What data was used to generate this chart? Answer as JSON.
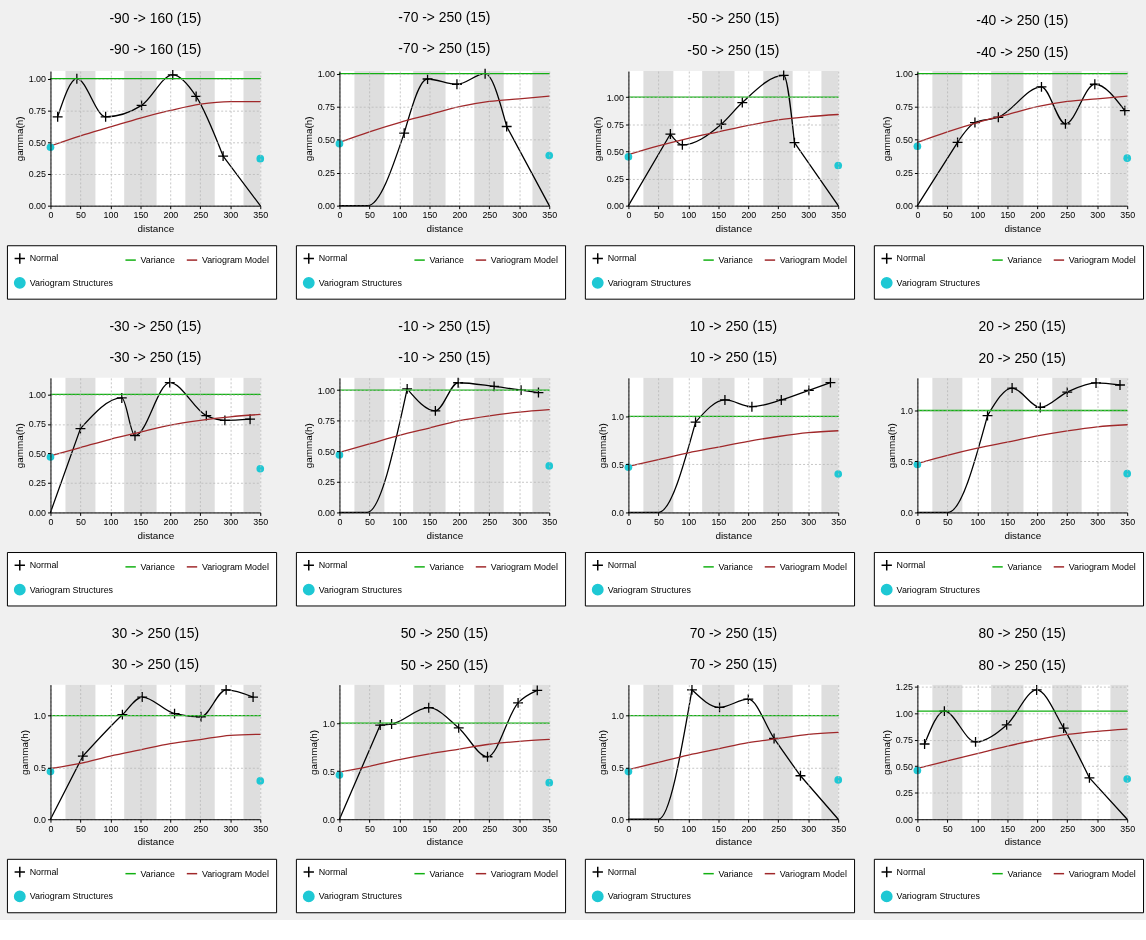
{
  "chart_data": [
    {
      "type": "line",
      "title": "-90 -> 160 (15)",
      "subtitle": "-90 -> 160 (15)",
      "xlabel": "distance",
      "ylabel": "gamma(h)",
      "xlim": [
        0,
        350
      ],
      "xticks": [
        0,
        50,
        100,
        150,
        200,
        250,
        300,
        350
      ],
      "ylim": [
        0,
        1.06
      ],
      "yticks": [
        {
          "value": 0,
          "label": "0.00"
        },
        0.25,
        {
          "value": 0.5,
          "label": "0.50"
        },
        0.75,
        {
          "value": 1,
          "label": "1.00"
        }
      ],
      "grid": true,
      "legend": "bottom",
      "bands": [
        {
          "axis": "x",
          "from": 25,
          "to": 75,
          "color": "#dedede"
        },
        {
          "axis": "x",
          "from": 123,
          "to": 177,
          "color": "#dedede"
        },
        {
          "axis": "x",
          "from": 225,
          "to": 274,
          "color": "#dedede"
        },
        {
          "axis": "x",
          "from": 322,
          "to": 350,
          "color": "#dedede"
        }
      ],
      "series": [
        {
          "name": "Normal",
          "marker": "cross",
          "color": "#000000",
          "x": [
            12,
            44,
            92,
            152,
            204,
            243,
            288
          ],
          "values": [
            0.7,
            1.0,
            0.7,
            0.79,
            1.03,
            0.86,
            0.39
          ]
        },
        {
          "color": "#000000",
          "x": [
            288,
            350
          ],
          "values": [
            0.39,
            0
          ]
        },
        {
          "name": "Variance",
          "color": "#12b012",
          "x": [
            0,
            350
          ],
          "values": [
            1,
            1
          ]
        },
        {
          "name": "Variogram Model",
          "color": "#a0282a",
          "x": [
            0,
            50,
            100,
            150,
            200,
            250,
            300,
            350
          ],
          "values": [
            0.47,
            0.55,
            0.62,
            0.69,
            0.75,
            0.8,
            0.82,
            0.82
          ]
        },
        {
          "name": "Variogram Structures",
          "type": "scatter",
          "marker": "circle",
          "color": "#1ec8d4",
          "x": [
            0,
            350
          ],
          "values": [
            0.46,
            0.37
          ]
        }
      ]
    },
    {
      "type": "line",
      "title": "-70 -> 250 (15)",
      "subtitle": "-70 -> 250 (15)",
      "xlabel": "distance",
      "ylabel": "gamma(h)",
      "xlim": [
        0,
        350
      ],
      "xticks": [
        0,
        50,
        100,
        150,
        200,
        250,
        300,
        350
      ],
      "ylim": [
        0,
        1.02
      ],
      "yticks": [
        {
          "value": 0,
          "label": "0.00"
        },
        0.25,
        {
          "value": 0.5,
          "label": "0.50"
        },
        0.75,
        {
          "value": 1,
          "label": "1.00"
        }
      ],
      "grid": true,
      "legend": "bottom",
      "bands": [
        {
          "axis": "x",
          "from": 25,
          "to": 75,
          "color": "#dedede"
        },
        {
          "axis": "x",
          "from": 123,
          "to": 177,
          "color": "#dedede"
        },
        {
          "axis": "x",
          "from": 225,
          "to": 274,
          "color": "#dedede"
        },
        {
          "axis": "x",
          "from": 322,
          "to": 350,
          "color": "#dedede"
        }
      ],
      "series": [
        {
          "name": "Normal",
          "marker": "cross",
          "color": "#000000",
          "x": [
            108,
            147,
            196,
            243,
            279
          ],
          "values": [
            0.55,
            0.96,
            0.92,
            1.0,
            0.6
          ]
        },
        {
          "color": "#000000",
          "x": [
            0,
            47,
            108
          ],
          "values": [
            0,
            0,
            0.55
          ]
        },
        {
          "color": "#000000",
          "x": [
            279,
            350
          ],
          "values": [
            0.6,
            0
          ]
        },
        {
          "name": "Variance",
          "color": "#12b012",
          "x": [
            0,
            350
          ],
          "values": [
            1,
            1
          ]
        },
        {
          "name": "Variogram Model",
          "color": "#a0282a",
          "x": [
            0,
            50,
            100,
            150,
            200,
            250,
            300,
            350
          ],
          "values": [
            0.48,
            0.56,
            0.63,
            0.69,
            0.75,
            0.79,
            0.81,
            0.83
          ]
        },
        {
          "name": "Variogram Structures",
          "type": "scatter",
          "marker": "circle",
          "color": "#1ec8d4",
          "x": [
            0,
            350
          ],
          "values": [
            0.47,
            0.38
          ]
        }
      ]
    },
    {
      "type": "line",
      "title": "-50 -> 250 (15)",
      "subtitle": "-50 -> 250 (15)",
      "xlabel": "distance",
      "ylabel": "gamma(h)",
      "xlim": [
        0,
        350
      ],
      "xticks": [
        0,
        50,
        100,
        150,
        200,
        250,
        300,
        350
      ],
      "ylim": [
        0,
        1.24
      ],
      "yticks": [
        {
          "value": 0,
          "label": "0.00"
        },
        0.25,
        {
          "value": 0.5,
          "label": "0.50"
        },
        0.75,
        {
          "value": 1,
          "label": "1.00"
        }
      ],
      "grid": true,
      "legend": "bottom",
      "bands": [
        {
          "axis": "x",
          "from": 25,
          "to": 75,
          "color": "#dedede"
        },
        {
          "axis": "x",
          "from": 123,
          "to": 177,
          "color": "#dedede"
        },
        {
          "axis": "x",
          "from": 225,
          "to": 274,
          "color": "#dedede"
        },
        {
          "axis": "x",
          "from": 322,
          "to": 350,
          "color": "#dedede"
        }
      ],
      "series": [
        {
          "name": "Normal",
          "marker": "cross",
          "color": "#000000",
          "x": [
            70,
            90,
            155,
            190,
            259,
            277
          ],
          "values": [
            0.66,
            0.56,
            0.75,
            0.95,
            1.2,
            0.58
          ]
        },
        {
          "color": "#000000",
          "x": [
            0,
            70
          ],
          "values": [
            0,
            0.66
          ]
        },
        {
          "color": "#000000",
          "x": [
            277,
            350
          ],
          "values": [
            0.58,
            0
          ]
        },
        {
          "name": "Variance",
          "color": "#12b012",
          "x": [
            0,
            350
          ],
          "values": [
            1,
            1
          ]
        },
        {
          "name": "Variogram Model",
          "color": "#a0282a",
          "x": [
            0,
            50,
            100,
            150,
            200,
            250,
            300,
            350
          ],
          "values": [
            0.47,
            0.55,
            0.62,
            0.68,
            0.74,
            0.79,
            0.82,
            0.84
          ]
        },
        {
          "name": "Variogram Structures",
          "type": "scatter",
          "marker": "circle",
          "color": "#1ec8d4",
          "x": [
            0,
            350
          ],
          "values": [
            0.45,
            0.37
          ]
        }
      ]
    },
    {
      "type": "line",
      "title": "-40 -> 250 (15)",
      "subtitle": "-40 -> 250 (15)",
      "xlabel": "distance",
      "ylabel": "gamma(h)",
      "xlim": [
        0,
        350
      ],
      "xticks": [
        0,
        50,
        100,
        150,
        200,
        250,
        300,
        350
      ],
      "ylim": [
        0,
        1.02
      ],
      "yticks": [
        {
          "value": 0,
          "label": "0.00"
        },
        0.25,
        {
          "value": 0.5,
          "label": "0.50"
        },
        0.75,
        {
          "value": 1,
          "label": "1.00"
        }
      ],
      "grid": true,
      "legend": "bottom",
      "bands": [
        {
          "axis": "x",
          "from": 25,
          "to": 75,
          "color": "#dedede"
        },
        {
          "axis": "x",
          "from": 123,
          "to": 177,
          "color": "#dedede"
        },
        {
          "axis": "x",
          "from": 225,
          "to": 274,
          "color": "#dedede"
        },
        {
          "axis": "x",
          "from": 322,
          "to": 350,
          "color": "#dedede"
        }
      ],
      "series": [
        {
          "name": "Normal",
          "marker": "cross",
          "color": "#000000",
          "x": [
            67,
            96,
            135,
            207,
            247,
            296,
            346
          ],
          "values": [
            0.48,
            0.63,
            0.67,
            0.9,
            0.62,
            0.92,
            0.72
          ]
        },
        {
          "color": "#000000",
          "x": [
            0,
            67
          ],
          "values": [
            0,
            0.48
          ]
        },
        {
          "name": "Variance",
          "color": "#12b012",
          "x": [
            0,
            350
          ],
          "values": [
            1,
            1
          ]
        },
        {
          "name": "Variogram Model",
          "color": "#a0282a",
          "x": [
            0,
            50,
            100,
            150,
            200,
            250,
            300,
            350
          ],
          "values": [
            0.48,
            0.56,
            0.63,
            0.69,
            0.75,
            0.79,
            0.81,
            0.83
          ]
        },
        {
          "name": "Variogram Structures",
          "type": "scatter",
          "marker": "circle",
          "color": "#1ec8d4",
          "x": [
            0,
            350
          ],
          "values": [
            0.45,
            0.36
          ]
        }
      ]
    },
    {
      "type": "line",
      "title": "-30 -> 250 (15)",
      "subtitle": "-30 -> 250 (15)",
      "xlabel": "distance",
      "ylabel": "gamma(h)",
      "xlim": [
        0,
        350
      ],
      "xticks": [
        0,
        50,
        100,
        150,
        200,
        250,
        300,
        350
      ],
      "ylim": [
        0,
        1.14
      ],
      "yticks": [
        {
          "value": 0,
          "label": "0.00"
        },
        0.25,
        {
          "value": 0.5,
          "label": "0.50"
        },
        0.75,
        {
          "value": 1,
          "label": "1.00"
        }
      ],
      "grid": true,
      "legend": "bottom",
      "bands": [
        {
          "axis": "x",
          "from": 25,
          "to": 75,
          "color": "#dedede"
        },
        {
          "axis": "x",
          "from": 123,
          "to": 177,
          "color": "#dedede"
        },
        {
          "axis": "x",
          "from": 225,
          "to": 274,
          "color": "#dedede"
        },
        {
          "axis": "x",
          "from": 322,
          "to": 350,
          "color": "#dedede"
        }
      ],
      "series": [
        {
          "name": "Normal",
          "marker": "cross",
          "color": "#000000",
          "x": [
            50,
            119,
            141,
            199,
            260,
            291,
            333
          ],
          "values": [
            0.71,
            0.97,
            0.65,
            1.1,
            0.82,
            0.78,
            0.79
          ]
        },
        {
          "color": "#000000",
          "x": [
            0,
            50
          ],
          "values": [
            0,
            0.71
          ]
        },
        {
          "name": "Variance",
          "color": "#12b012",
          "x": [
            0,
            350
          ],
          "values": [
            1,
            1
          ]
        },
        {
          "name": "Variogram Model",
          "color": "#a0282a",
          "x": [
            0,
            50,
            100,
            150,
            200,
            250,
            300,
            350
          ],
          "values": [
            0.48,
            0.55,
            0.62,
            0.68,
            0.74,
            0.78,
            0.81,
            0.83
          ]
        },
        {
          "name": "Variogram Structures",
          "type": "scatter",
          "marker": "circle",
          "color": "#1ec8d4",
          "x": [
            0,
            350
          ],
          "values": [
            0.47,
            0.37
          ]
        }
      ]
    },
    {
      "type": "line",
      "title": "-10 -> 250 (15)",
      "subtitle": "-10 -> 250 (15)",
      "xlabel": "distance",
      "ylabel": "gamma(h)",
      "xlim": [
        0,
        350
      ],
      "xticks": [
        0,
        50,
        100,
        150,
        200,
        250,
        300,
        350
      ],
      "ylim": [
        0,
        1.1
      ],
      "yticks": [
        {
          "value": 0,
          "label": "0.00"
        },
        0.25,
        {
          "value": 0.5,
          "label": "0.50"
        },
        0.75,
        {
          "value": 1,
          "label": "1.00"
        }
      ],
      "grid": true,
      "legend": "bottom",
      "bands": [
        {
          "axis": "x",
          "from": 25,
          "to": 75,
          "color": "#dedede"
        },
        {
          "axis": "x",
          "from": 123,
          "to": 177,
          "color": "#dedede"
        },
        {
          "axis": "x",
          "from": 225,
          "to": 274,
          "color": "#dedede"
        },
        {
          "axis": "x",
          "from": 322,
          "to": 350,
          "color": "#dedede"
        }
      ],
      "series": [
        {
          "name": "Normal",
          "marker": "cross",
          "color": "#000000",
          "x": [
            113,
            160,
            198,
            258,
            303,
            332
          ],
          "values": [
            1.01,
            0.83,
            1.06,
            1.03,
            1.0,
            0.98
          ]
        },
        {
          "color": "#000000",
          "x": [
            0,
            46,
            113
          ],
          "values": [
            0,
            0,
            1.01
          ]
        },
        {
          "name": "Variance",
          "color": "#12b012",
          "x": [
            0,
            350
          ],
          "values": [
            1,
            1
          ]
        },
        {
          "name": "Variogram Model",
          "color": "#a0282a",
          "x": [
            0,
            50,
            100,
            150,
            200,
            250,
            300,
            350
          ],
          "values": [
            0.49,
            0.56,
            0.63,
            0.69,
            0.75,
            0.79,
            0.82,
            0.84
          ]
        },
        {
          "name": "Variogram Structures",
          "type": "scatter",
          "marker": "circle",
          "color": "#1ec8d4",
          "x": [
            0,
            350
          ],
          "values": [
            0.47,
            0.38
          ]
        }
      ]
    },
    {
      "type": "line",
      "title": "10 -> 250 (15)",
      "subtitle": "10 -> 250 (15)",
      "xlabel": "distance",
      "ylabel": "gamma(h)",
      "xlim": [
        0,
        350
      ],
      "xticks": [
        0,
        50,
        100,
        150,
        200,
        250,
        300,
        350
      ],
      "ylim": [
        0,
        1.4
      ],
      "yticks": [
        {
          "value": 0,
          "label": "0.0"
        },
        0.5,
        {
          "value": 1,
          "label": "1.0"
        }
      ],
      "grid": true,
      "legend": "bottom",
      "bands": [
        {
          "axis": "x",
          "from": 25,
          "to": 75,
          "color": "#dedede"
        },
        {
          "axis": "x",
          "from": 123,
          "to": 177,
          "color": "#dedede"
        },
        {
          "axis": "x",
          "from": 225,
          "to": 274,
          "color": "#dedede"
        },
        {
          "axis": "x",
          "from": 322,
          "to": 350,
          "color": "#dedede"
        }
      ],
      "series": [
        {
          "name": "Normal",
          "marker": "cross",
          "color": "#000000",
          "x": [
            112,
            161,
            206,
            255,
            301,
            337
          ],
          "values": [
            0.94,
            1.17,
            1.1,
            1.17,
            1.27,
            1.35
          ]
        },
        {
          "color": "#000000",
          "x": [
            0,
            50,
            112
          ],
          "values": [
            0,
            0,
            0.94
          ]
        },
        {
          "name": "Variance",
          "color": "#12b012",
          "x": [
            0,
            350
          ],
          "values": [
            1,
            1
          ]
        },
        {
          "name": "Variogram Model",
          "color": "#a0282a",
          "x": [
            0,
            50,
            100,
            150,
            200,
            250,
            300,
            350
          ],
          "values": [
            0.48,
            0.55,
            0.62,
            0.68,
            0.74,
            0.79,
            0.83,
            0.85
          ]
        },
        {
          "name": "Variogram Structures",
          "type": "scatter",
          "marker": "circle",
          "color": "#1ec8d4",
          "x": [
            0,
            350
          ],
          "values": [
            0.47,
            0.4
          ]
        }
      ]
    },
    {
      "type": "line",
      "title": "20 -> 250 (15)",
      "subtitle": "20 -> 250 (15)",
      "xlabel": "distance",
      "ylabel": "gamma(h)",
      "xlim": [
        0,
        350
      ],
      "xticks": [
        0,
        50,
        100,
        150,
        200,
        250,
        300,
        350
      ],
      "ylim": [
        0,
        1.32
      ],
      "yticks": [
        {
          "value": 0,
          "label": "0.0"
        },
        0.5,
        {
          "value": 1,
          "label": "1.0"
        }
      ],
      "grid": true,
      "legend": "bottom",
      "bands": [
        {
          "axis": "x",
          "from": 25,
          "to": 75,
          "color": "#dedede"
        },
        {
          "axis": "x",
          "from": 123,
          "to": 177,
          "color": "#dedede"
        },
        {
          "axis": "x",
          "from": 225,
          "to": 274,
          "color": "#dedede"
        },
        {
          "axis": "x",
          "from": 322,
          "to": 350,
          "color": "#dedede"
        }
      ],
      "series": [
        {
          "name": "Normal",
          "marker": "cross",
          "color": "#000000",
          "x": [
            117,
            158,
            205,
            250,
            298,
            338
          ],
          "values": [
            0.95,
            1.22,
            1.03,
            1.18,
            1.27,
            1.25
          ]
        },
        {
          "color": "#000000",
          "x": [
            0,
            51,
            117
          ],
          "values": [
            0,
            0,
            0.95
          ]
        },
        {
          "name": "Variance",
          "color": "#12b012",
          "x": [
            0,
            350
          ],
          "values": [
            1,
            1
          ]
        },
        {
          "name": "Variogram Model",
          "color": "#a0282a",
          "x": [
            0,
            50,
            100,
            150,
            200,
            250,
            300,
            350
          ],
          "values": [
            0.48,
            0.56,
            0.63,
            0.69,
            0.75,
            0.8,
            0.84,
            0.86
          ]
        },
        {
          "name": "Variogram Structures",
          "type": "scatter",
          "marker": "circle",
          "color": "#1ec8d4",
          "x": [
            0,
            350
          ],
          "values": [
            0.47,
            0.38
          ]
        }
      ]
    },
    {
      "type": "line",
      "title": "30 -> 250 (15)",
      "subtitle": "30 -> 250 (15)",
      "xlabel": "distance",
      "ylabel": "gamma(h)",
      "xlim": [
        0,
        350
      ],
      "xticks": [
        0,
        50,
        100,
        150,
        200,
        250,
        300,
        350
      ],
      "ylim": [
        0,
        1.3
      ],
      "yticks": [
        {
          "value": 0,
          "label": "0.0"
        },
        0.5,
        {
          "value": 1,
          "label": "1.0"
        }
      ],
      "grid": true,
      "legend": "bottom",
      "bands": [
        {
          "axis": "x",
          "from": 25,
          "to": 75,
          "color": "#dedede"
        },
        {
          "axis": "x",
          "from": 123,
          "to": 177,
          "color": "#dedede"
        },
        {
          "axis": "x",
          "from": 225,
          "to": 274,
          "color": "#dedede"
        },
        {
          "axis": "x",
          "from": 322,
          "to": 350,
          "color": "#dedede"
        }
      ],
      "series": [
        {
          "name": "Normal",
          "marker": "cross",
          "color": "#000000",
          "x": [
            54,
            120,
            153,
            207,
            251,
            293,
            338
          ],
          "values": [
            0.61,
            1.01,
            1.18,
            1.02,
            0.99,
            1.25,
            1.18
          ]
        },
        {
          "color": "#000000",
          "x": [
            0,
            54
          ],
          "values": [
            0,
            0.61
          ]
        },
        {
          "name": "Variance",
          "color": "#12b012",
          "x": [
            0,
            350
          ],
          "values": [
            1,
            1
          ]
        },
        {
          "name": "Variogram Model",
          "color": "#a0282a",
          "x": [
            0,
            50,
            100,
            150,
            200,
            250,
            300,
            350
          ],
          "values": [
            0.49,
            0.54,
            0.61,
            0.67,
            0.73,
            0.77,
            0.81,
            0.82
          ]
        },
        {
          "name": "Variogram Structures",
          "type": "scatter",
          "marker": "circle",
          "color": "#1ec8d4",
          "x": [
            0,
            350
          ],
          "values": [
            0.46,
            0.37
          ]
        }
      ]
    },
    {
      "type": "line",
      "title": "50 -> 250 (15)",
      "subtitle": "50 -> 250 (15)",
      "xlabel": "distance",
      "ylabel": "gamma(h)",
      "xlim": [
        0,
        350
      ],
      "xticks": [
        0,
        50,
        100,
        150,
        200,
        250,
        300,
        350
      ],
      "ylim": [
        0,
        1.4
      ],
      "yticks": [
        {
          "value": 0,
          "label": "0.0"
        },
        0.5,
        {
          "value": 1,
          "label": "1.0"
        }
      ],
      "grid": true,
      "legend": "bottom",
      "bands": [
        {
          "axis": "x",
          "from": 25,
          "to": 75,
          "color": "#dedede"
        },
        {
          "axis": "x",
          "from": 123,
          "to": 177,
          "color": "#dedede"
        },
        {
          "axis": "x",
          "from": 225,
          "to": 274,
          "color": "#dedede"
        },
        {
          "axis": "x",
          "from": 322,
          "to": 350,
          "color": "#dedede"
        }
      ],
      "series": [
        {
          "name": "Normal",
          "marker": "cross",
          "color": "#000000",
          "x": [
            68,
            87,
            149,
            199,
            247,
            298,
            330
          ],
          "values": [
            0.98,
            0.99,
            1.16,
            0.95,
            0.65,
            1.21,
            1.34
          ]
        },
        {
          "color": "#000000",
          "x": [
            0,
            68
          ],
          "values": [
            0,
            0.98
          ]
        },
        {
          "name": "Variance",
          "color": "#12b012",
          "x": [
            0,
            350
          ],
          "values": [
            1,
            1
          ]
        },
        {
          "name": "Variogram Model",
          "color": "#a0282a",
          "x": [
            0,
            50,
            100,
            150,
            200,
            250,
            300,
            350
          ],
          "values": [
            0.49,
            0.55,
            0.62,
            0.68,
            0.73,
            0.78,
            0.81,
            0.83
          ]
        },
        {
          "name": "Variogram Structures",
          "type": "scatter",
          "marker": "circle",
          "color": "#1ec8d4",
          "x": [
            0,
            350
          ],
          "values": [
            0.46,
            0.38
          ]
        }
      ]
    },
    {
      "type": "line",
      "title": "70 -> 250 (15)",
      "subtitle": "70 -> 250 (15)",
      "xlabel": "distance",
      "ylabel": "gamma(h)",
      "xlim": [
        0,
        350
      ],
      "xticks": [
        0,
        50,
        100,
        150,
        200,
        250,
        300,
        350
      ],
      "ylim": [
        0,
        1.3
      ],
      "yticks": [
        {
          "value": 0,
          "label": "0.0"
        },
        0.5,
        {
          "value": 1,
          "label": "1.0"
        }
      ],
      "grid": true,
      "legend": "bottom",
      "bands": [
        {
          "axis": "x",
          "from": 25,
          "to": 75,
          "color": "#dedede"
        },
        {
          "axis": "x",
          "from": 123,
          "to": 177,
          "color": "#dedede"
        },
        {
          "axis": "x",
          "from": 225,
          "to": 274,
          "color": "#dedede"
        },
        {
          "axis": "x",
          "from": 322,
          "to": 350,
          "color": "#dedede"
        }
      ],
      "series": [
        {
          "name": "Normal",
          "marker": "cross",
          "color": "#000000",
          "x": [
            106,
            152,
            200,
            243,
            287
          ],
          "values": [
            1.25,
            1.08,
            1.16,
            0.78,
            0.42
          ]
        },
        {
          "color": "#000000",
          "x": [
            0,
            50,
            106
          ],
          "values": [
            0,
            0,
            1.25
          ]
        },
        {
          "color": "#000000",
          "x": [
            287,
            350
          ],
          "values": [
            0.42,
            0
          ]
        },
        {
          "name": "Variance",
          "color": "#12b012",
          "x": [
            0,
            350
          ],
          "values": [
            1,
            1
          ]
        },
        {
          "name": "Variogram Model",
          "color": "#a0282a",
          "x": [
            0,
            50,
            100,
            150,
            200,
            250,
            300,
            350
          ],
          "values": [
            0.48,
            0.55,
            0.62,
            0.68,
            0.74,
            0.78,
            0.82,
            0.84
          ]
        },
        {
          "name": "Variogram Structures",
          "type": "scatter",
          "marker": "circle",
          "color": "#1ec8d4",
          "x": [
            0,
            350
          ],
          "values": [
            0.46,
            0.38
          ]
        }
      ]
    },
    {
      "type": "line",
      "title": "80 -> 250 (15)",
      "subtitle": "80 -> 250 (15)",
      "xlabel": "distance",
      "ylabel": "gamma(h)",
      "xlim": [
        0,
        350
      ],
      "xticks": [
        0,
        50,
        100,
        150,
        200,
        250,
        300,
        350
      ],
      "ylim": [
        0,
        1.27
      ],
      "yticks": [
        {
          "value": 0,
          "label": "0.00"
        },
        0.25,
        {
          "value": 0.5,
          "label": "0.50"
        },
        0.75,
        {
          "value": 1,
          "label": "1.00"
        },
        1.25
      ],
      "grid": true,
      "legend": "bottom",
      "bands": [
        {
          "axis": "x",
          "from": 25,
          "to": 75,
          "color": "#dedede"
        },
        {
          "axis": "x",
          "from": 123,
          "to": 177,
          "color": "#dedede"
        },
        {
          "axis": "x",
          "from": 225,
          "to": 274,
          "color": "#dedede"
        },
        {
          "axis": "x",
          "from": 322,
          "to": 350,
          "color": "#dedede"
        }
      ],
      "series": [
        {
          "name": "Normal",
          "marker": "cross",
          "color": "#000000",
          "x": [
            12,
            45,
            97,
            149,
            199,
            244,
            287
          ],
          "values": [
            0.71,
            1.02,
            0.73,
            0.89,
            1.22,
            0.86,
            0.39
          ]
        },
        {
          "color": "#000000",
          "x": [
            287,
            350
          ],
          "values": [
            0.39,
            0
          ]
        },
        {
          "name": "Variance",
          "color": "#12b012",
          "x": [
            0,
            350
          ],
          "values": [
            1.02,
            1.02
          ]
        },
        {
          "name": "Variogram Model",
          "color": "#a0282a",
          "x": [
            0,
            50,
            100,
            150,
            200,
            250,
            300,
            350
          ],
          "values": [
            0.48,
            0.55,
            0.62,
            0.69,
            0.75,
            0.8,
            0.83,
            0.85
          ]
        },
        {
          "name": "Variogram Structures",
          "type": "scatter",
          "marker": "circle",
          "color": "#1ec8d4",
          "x": [
            0,
            350
          ],
          "values": [
            0.46,
            0.38
          ]
        }
      ]
    }
  ]
}
